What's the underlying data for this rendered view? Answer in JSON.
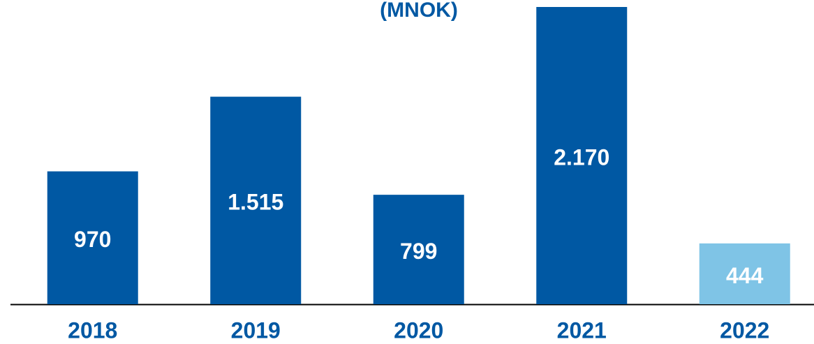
{
  "chart_data": {
    "type": "bar",
    "title": "(MNOK)",
    "categories": [
      "2018",
      "2019",
      "2020",
      "2021",
      "2022"
    ],
    "values": [
      970,
      1515,
      799,
      2170,
      444
    ],
    "value_labels": [
      "970",
      "1.515",
      "799",
      "2.170",
      "444"
    ],
    "colors": [
      "#0058a3",
      "#0058a3",
      "#0058a3",
      "#0058a3",
      "#7fc4e6"
    ]
  }
}
